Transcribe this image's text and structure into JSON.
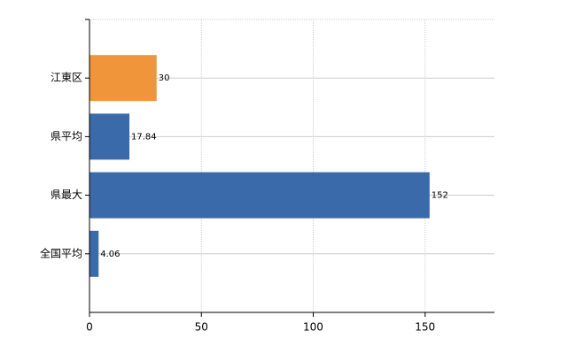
{
  "chart_data": {
    "type": "bar",
    "orientation": "horizontal",
    "categories": [
      "江東区",
      "県平均",
      "県最大",
      "全国平均"
    ],
    "values": [
      30,
      17.84,
      152,
      4.06
    ],
    "colors": [
      "#f0953a",
      "#3a6aaa",
      "#3a6aaa",
      "#3a6aaa"
    ],
    "xlim": [
      0,
      181
    ],
    "xticks": [
      0,
      50,
      100,
      150
    ],
    "grid": true
  }
}
